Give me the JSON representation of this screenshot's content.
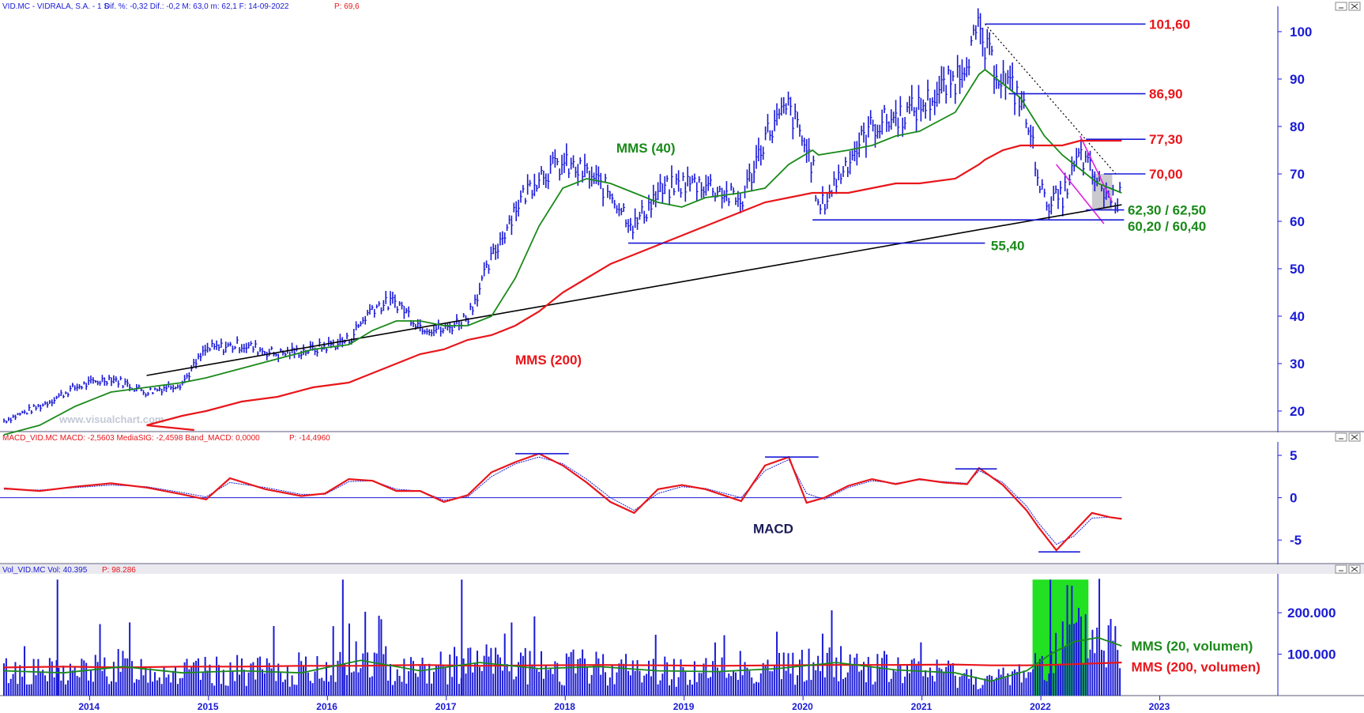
{
  "panels": {
    "price": {
      "header": {
        "symbol": "VID.MC - VIDRALA, S.A. -  1 S",
        "stats": "Dif. %: -0,32  Dif.: -0,2  M: 63,0  m: 62,1  F: 14-09-2022",
        "last": "P: 69,6"
      },
      "watermark": "www.visualchart.com"
    },
    "macd": {
      "header": {
        "stats": "MACD_VID.MC  MACD: -2,5603  MediaSIG: -2,4598  Band_MACD: 0,0000",
        "last": "P: -14,4960"
      }
    },
    "volume": {
      "header": {
        "stats": "Vol_VID.MC  Vol: 40.395",
        "last": "P: 98.286"
      }
    }
  },
  "colors": {
    "axis": "#1a1ad6",
    "price_bars": "#1a1ad6",
    "sma40": "#1a8a1a",
    "sma200": "#e8161b",
    "macd": "#e8161b",
    "signal": "#1a1ad6",
    "volume_highlight": "#22e022",
    "trendline": "#000000",
    "channel": "#e020e0"
  },
  "chart_data": [
    {
      "type": "line",
      "subtype": "weekly price bars with moving averages",
      "x": [
        2013.3,
        2013.6,
        2013.9,
        2014.2,
        2014.5,
        2014.8,
        2015.0,
        2015.3,
        2015.6,
        2015.9,
        2016.2,
        2016.4,
        2016.6,
        2016.8,
        2017.0,
        2017.2,
        2017.4,
        2017.6,
        2017.8,
        2018.0,
        2018.2,
        2018.4,
        2018.6,
        2018.8,
        2019.0,
        2019.2,
        2019.5,
        2019.7,
        2019.9,
        2020.1,
        2020.15,
        2020.4,
        2020.6,
        2020.8,
        2021.0,
        2021.3,
        2021.5,
        2021.55,
        2021.7,
        2021.85,
        2021.95,
        2022.05,
        2022.2,
        2022.35,
        2022.5,
        2022.6,
        2022.7
      ],
      "price": [
        18,
        21,
        25,
        27,
        24,
        26,
        33,
        34,
        32,
        33,
        35,
        42,
        43,
        38,
        37,
        40,
        52,
        63,
        70,
        72,
        70,
        66,
        59,
        66,
        68,
        68,
        64,
        78,
        84,
        72,
        62,
        73,
        80,
        82,
        84,
        90,
        100,
        96,
        90,
        86,
        76,
        64,
        65,
        74,
        68,
        65,
        65
      ],
      "sma40": [
        15,
        17,
        21,
        24,
        25,
        26,
        27,
        29,
        31,
        33,
        34,
        37,
        39,
        39,
        38,
        38,
        40,
        48,
        59,
        67,
        69,
        68,
        66,
        64,
        63,
        65,
        66,
        67,
        72,
        75,
        74,
        75,
        76,
        78,
        79,
        83,
        91,
        92,
        89,
        86,
        82,
        78,
        74,
        71,
        68,
        67,
        66
      ],
      "sma200": [
        8,
        11,
        13,
        15,
        17,
        19,
        20,
        22,
        23,
        25,
        26,
        28,
        30,
        32,
        33,
        35,
        36,
        38,
        41,
        45,
        48,
        51,
        53,
        55,
        57,
        59,
        62,
        64,
        65,
        66,
        66,
        66,
        67,
        68,
        68,
        69,
        72,
        73,
        75,
        76,
        76,
        76,
        76,
        77,
        77,
        77,
        77
      ],
      "series_names": [
        "MMS (40)",
        "MMS (200)"
      ],
      "ylim": [
        16,
        104
      ],
      "yticks": [
        "100",
        "90",
        "80",
        "70",
        "60",
        "50",
        "40",
        "30",
        "20"
      ],
      "xticks": [
        "2014",
        "2015",
        "2016",
        "2017",
        "2018",
        "2019",
        "2020",
        "2021",
        "2022",
        "2023"
      ],
      "levels": [
        {
          "label": "101,60",
          "value": 101.6,
          "color": "#e8161b"
        },
        {
          "label": "86,90",
          "value": 86.9,
          "color": "#e8161b"
        },
        {
          "label": "77,30",
          "value": 77.3,
          "color": "#e8161b"
        },
        {
          "label": "70,00",
          "value": 70.0,
          "color": "#e8161b"
        },
        {
          "label": "62,30 / 62,50",
          "value": 62.4,
          "color": "#1a8a1a"
        },
        {
          "label": "60,20 / 60,40",
          "value": 60.3,
          "color": "#1a8a1a"
        },
        {
          "label": "55,40",
          "value": 55.4,
          "color": "#1a8a1a"
        }
      ],
      "annotations": [
        "MMS (40)",
        "MMS (200)"
      ]
    },
    {
      "type": "line",
      "subtype": "MACD",
      "x": [
        2013.3,
        2013.6,
        2013.9,
        2014.2,
        2014.5,
        2014.8,
        2015.0,
        2015.2,
        2015.5,
        2015.8,
        2016.0,
        2016.2,
        2016.4,
        2016.6,
        2016.8,
        2017.0,
        2017.2,
        2017.4,
        2017.6,
        2017.8,
        2018.0,
        2018.2,
        2018.4,
        2018.6,
        2018.8,
        2019.0,
        2019.2,
        2019.5,
        2019.7,
        2019.9,
        2020.05,
        2020.2,
        2020.4,
        2020.6,
        2020.8,
        2021.0,
        2021.2,
        2021.4,
        2021.5,
        2021.7,
        2021.9,
        2022.0,
        2022.15,
        2022.3,
        2022.45,
        2022.6,
        2022.7
      ],
      "macd": [
        1.1,
        0.8,
        1.3,
        1.7,
        1.2,
        0.4,
        -0.2,
        2.3,
        1.0,
        0.2,
        0.5,
        2.2,
        2.0,
        0.8,
        0.8,
        -0.5,
        0.3,
        3.0,
        4.2,
        5.2,
        3.8,
        1.8,
        -0.5,
        -1.8,
        1.0,
        1.5,
        1.0,
        -0.4,
        3.8,
        4.8,
        -0.6,
        0.0,
        1.4,
        2.2,
        1.6,
        2.2,
        1.8,
        1.6,
        3.5,
        1.5,
        -1.5,
        -3.5,
        -6.2,
        -4.0,
        -1.8,
        -2.3,
        -2.5
      ],
      "signal": [
        1.0,
        0.9,
        1.2,
        1.5,
        1.3,
        0.6,
        0.1,
        1.8,
        1.2,
        0.4,
        0.4,
        1.9,
        2.0,
        1.0,
        0.8,
        -0.3,
        0.1,
        2.5,
        4.0,
        4.8,
        4.0,
        2.2,
        0.0,
        -1.5,
        0.5,
        1.3,
        1.1,
        0.0,
        3.2,
        4.5,
        0.5,
        -0.2,
        1.2,
        2.0,
        1.7,
        2.1,
        1.9,
        1.7,
        3.2,
        1.8,
        -1.0,
        -3.0,
        -5.5,
        -4.5,
        -2.4,
        -2.3,
        -2.5
      ],
      "ylim": [
        -7.5,
        6.5
      ],
      "yticks": [
        "5",
        "0",
        "-5"
      ],
      "peak_marks": [
        5.2,
        4.8,
        3.4,
        -6.4
      ],
      "label": "MACD"
    },
    {
      "type": "bar",
      "subtype": "weekly volume with moving averages",
      "x": [
        2013.3,
        2013.8,
        2014.3,
        2014.8,
        2015.3,
        2015.8,
        2016.3,
        2016.8,
        2017.3,
        2017.8,
        2018.3,
        2018.8,
        2019.3,
        2019.8,
        2020.3,
        2020.8,
        2021.3,
        2021.6,
        2021.9,
        2022.1,
        2022.3,
        2022.5,
        2022.7
      ],
      "sma20": [
        60000,
        55000,
        70000,
        55000,
        60000,
        55000,
        85000,
        60000,
        80000,
        65000,
        70000,
        60000,
        58000,
        65000,
        80000,
        62000,
        55000,
        35000,
        60000,
        100000,
        130000,
        140000,
        120000
      ],
      "sma200": [
        68000,
        70000,
        68000,
        70000,
        70000,
        72000,
        72000,
        74000,
        72000,
        73000,
        74000,
        73000,
        72000,
        73000,
        74000,
        74000,
        75000,
        73000,
        73000,
        74000,
        76000,
        78000,
        80000
      ],
      "spikes": [
        {
          "x": 2013.75,
          "v": 280000
        },
        {
          "x": 2016.15,
          "v": 280000
        },
        {
          "x": 2017.15,
          "v": 280000
        },
        {
          "x": 2022.1,
          "v": 280000
        }
      ],
      "ylim": [
        0,
        290000
      ],
      "yticks": [
        "200.000",
        "100.000"
      ],
      "series_names": [
        "MMS (20, volumen)",
        "MMS (200, volumen)"
      ]
    }
  ]
}
